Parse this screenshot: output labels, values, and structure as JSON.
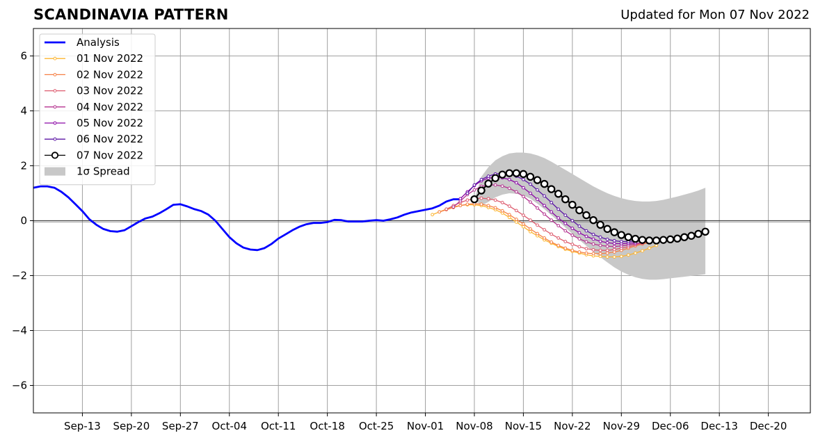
{
  "chart_data": {
    "type": "line",
    "title": "SCANDINAVIA PATTERN",
    "subtitle": "Updated for Mon 07 Nov 2022",
    "xlabel": "",
    "ylabel": "",
    "xlim": [
      "2022-09-06",
      "2022-12-26"
    ],
    "ylim": [
      -7,
      7
    ],
    "yticks": [
      -6,
      -4,
      -2,
      0,
      2,
      4,
      6
    ],
    "ytick_labels": [
      "−6",
      "−4",
      "−2",
      "0",
      "2",
      "4",
      "6"
    ],
    "xticks": [
      "2022-09-13",
      "2022-09-20",
      "2022-09-27",
      "2022-10-04",
      "2022-10-11",
      "2022-10-18",
      "2022-10-25",
      "2022-11-01",
      "2022-11-08",
      "2022-11-15",
      "2022-11-22",
      "2022-11-29",
      "2022-12-06",
      "2022-12-13",
      "2022-12-20"
    ],
    "xtick_labels": [
      "Sep-13",
      "Sep-20",
      "Sep-27",
      "Oct-04",
      "Oct-11",
      "Oct-18",
      "Oct-25",
      "Nov-01",
      "Nov-08",
      "Nov-15",
      "Nov-22",
      "Nov-29",
      "Dec-06",
      "Dec-13",
      "Dec-20"
    ],
    "grid": true,
    "zero_line": true,
    "legend_position": "upper-left",
    "analysis": {
      "name": "Analysis",
      "color": "#0000ff",
      "start_date": "2022-09-06",
      "values": [
        1.2,
        1.25,
        1.25,
        1.2,
        1.05,
        0.85,
        0.6,
        0.35,
        0.05,
        -0.15,
        -0.3,
        -0.38,
        -0.4,
        -0.35,
        -0.2,
        -0.05,
        0.08,
        0.15,
        0.27,
        0.42,
        0.58,
        0.6,
        0.52,
        0.42,
        0.35,
        0.22,
        0.0,
        -0.3,
        -0.6,
        -0.82,
        -0.98,
        -1.05,
        -1.07,
        -1.0,
        -0.85,
        -0.65,
        -0.5,
        -0.35,
        -0.22,
        -0.13,
        -0.08,
        -0.08,
        -0.05,
        0.03,
        0.02,
        -0.03,
        -0.03,
        -0.03,
        0.0,
        0.02,
        0.0,
        0.05,
        0.12,
        0.22,
        0.3,
        0.35,
        0.4,
        0.45,
        0.55,
        0.7,
        0.78,
        0.78
      ]
    },
    "forecasts": [
      {
        "name": "01 Nov 2022",
        "color": "#fcb42f",
        "start_date": "2022-11-02",
        "values": [
          0.22,
          0.32,
          0.42,
          0.5,
          0.56,
          0.58,
          0.58,
          0.55,
          0.48,
          0.4,
          0.28,
          0.12,
          -0.05,
          -0.22,
          -0.4,
          -0.55,
          -0.7,
          -0.82,
          -0.94,
          -1.04,
          -1.12,
          -1.18,
          -1.24,
          -1.28,
          -1.3,
          -1.32,
          -1.32,
          -1.3,
          -1.25,
          -1.18,
          -1.1,
          -1.0,
          -0.9
        ]
      },
      {
        "name": "02 Nov 2022",
        "color": "#f57f44",
        "start_date": "2022-11-03",
        "values": [
          0.32,
          0.4,
          0.48,
          0.55,
          0.6,
          0.62,
          0.6,
          0.55,
          0.47,
          0.36,
          0.22,
          0.05,
          -0.12,
          -0.3,
          -0.47,
          -0.63,
          -0.78,
          -0.9,
          -1.0,
          -1.08,
          -1.14,
          -1.18,
          -1.2,
          -1.2,
          -1.18,
          -1.14,
          -1.08,
          -1.0,
          -0.92,
          -0.85,
          -0.8
        ]
      },
      {
        "name": "03 Nov 2022",
        "color": "#dd5a6d",
        "start_date": "2022-11-04",
        "values": [
          0.42,
          0.55,
          0.66,
          0.75,
          0.8,
          0.82,
          0.8,
          0.75,
          0.66,
          0.53,
          0.37,
          0.2,
          0.02,
          -0.16,
          -0.33,
          -0.49,
          -0.63,
          -0.76,
          -0.86,
          -0.95,
          -1.02,
          -1.06,
          -1.08,
          -1.08,
          -1.05,
          -1.0,
          -0.95,
          -0.88,
          -0.82,
          -0.75
        ]
      },
      {
        "name": "04 Nov 2022",
        "color": "#b4318f",
        "start_date": "2022-11-05",
        "values": [
          0.5,
          0.72,
          0.95,
          1.12,
          1.25,
          1.3,
          1.3,
          1.26,
          1.18,
          1.05,
          0.88,
          0.68,
          0.46,
          0.24,
          0.02,
          -0.18,
          -0.37,
          -0.53,
          -0.66,
          -0.77,
          -0.85,
          -0.9,
          -0.93,
          -0.94,
          -0.92,
          -0.88,
          -0.84,
          -0.8
        ]
      },
      {
        "name": "05 Nov 2022",
        "color": "#8b07a6",
        "start_date": "2022-11-06",
        "values": [
          0.8,
          1.05,
          1.28,
          1.45,
          1.55,
          1.58,
          1.56,
          1.5,
          1.38,
          1.2,
          1.0,
          0.78,
          0.55,
          0.32,
          0.1,
          -0.1,
          -0.28,
          -0.44,
          -0.57,
          -0.67,
          -0.75,
          -0.8,
          -0.83,
          -0.84,
          -0.82,
          -0.8
        ]
      },
      {
        "name": "06 Nov 2022",
        "color": "#5b14a5",
        "start_date": "2022-11-07",
        "values": [
          1.0,
          1.3,
          1.5,
          1.62,
          1.7,
          1.72,
          1.7,
          1.62,
          1.5,
          1.33,
          1.12,
          0.9,
          0.66,
          0.42,
          0.2,
          0.0,
          -0.2,
          -0.37,
          -0.5,
          -0.6,
          -0.68,
          -0.73,
          -0.76,
          -0.76,
          -0.74
        ]
      },
      {
        "name": "07 Nov 2022",
        "color": "#000000",
        "start_date": "2022-11-08",
        "values": [
          0.78,
          1.1,
          1.35,
          1.55,
          1.68,
          1.73,
          1.73,
          1.7,
          1.6,
          1.48,
          1.34,
          1.15,
          0.98,
          0.78,
          0.58,
          0.38,
          0.2,
          0.02,
          -0.15,
          -0.3,
          -0.42,
          -0.52,
          -0.6,
          -0.66,
          -0.7,
          -0.72,
          -0.72,
          -0.7,
          -0.68,
          -0.65,
          -0.6,
          -0.55,
          -0.48,
          -0.4
        ]
      }
    ],
    "spread": {
      "name": "1σ Spread",
      "color": "#c8c8c8",
      "start_date": "2022-11-08",
      "upper": [
        0.78,
        1.6,
        1.95,
        2.2,
        2.35,
        2.45,
        2.48,
        2.48,
        2.45,
        2.38,
        2.28,
        2.15,
        2.0,
        1.85,
        1.7,
        1.55,
        1.4,
        1.25,
        1.12,
        1.0,
        0.9,
        0.82,
        0.76,
        0.72,
        0.7,
        0.7,
        0.72,
        0.76,
        0.82,
        0.88,
        0.95,
        1.02,
        1.1,
        1.2
      ],
      "lower": [
        0.78,
        0.55,
        0.68,
        0.85,
        0.95,
        1.0,
        0.98,
        0.92,
        0.8,
        0.62,
        0.42,
        0.2,
        -0.02,
        -0.25,
        -0.48,
        -0.7,
        -0.92,
        -1.13,
        -1.33,
        -1.52,
        -1.7,
        -1.85,
        -1.97,
        -2.06,
        -2.12,
        -2.15,
        -2.15,
        -2.13,
        -2.1,
        -2.07,
        -2.04,
        -2.01,
        -1.98,
        -1.95
      ]
    }
  }
}
